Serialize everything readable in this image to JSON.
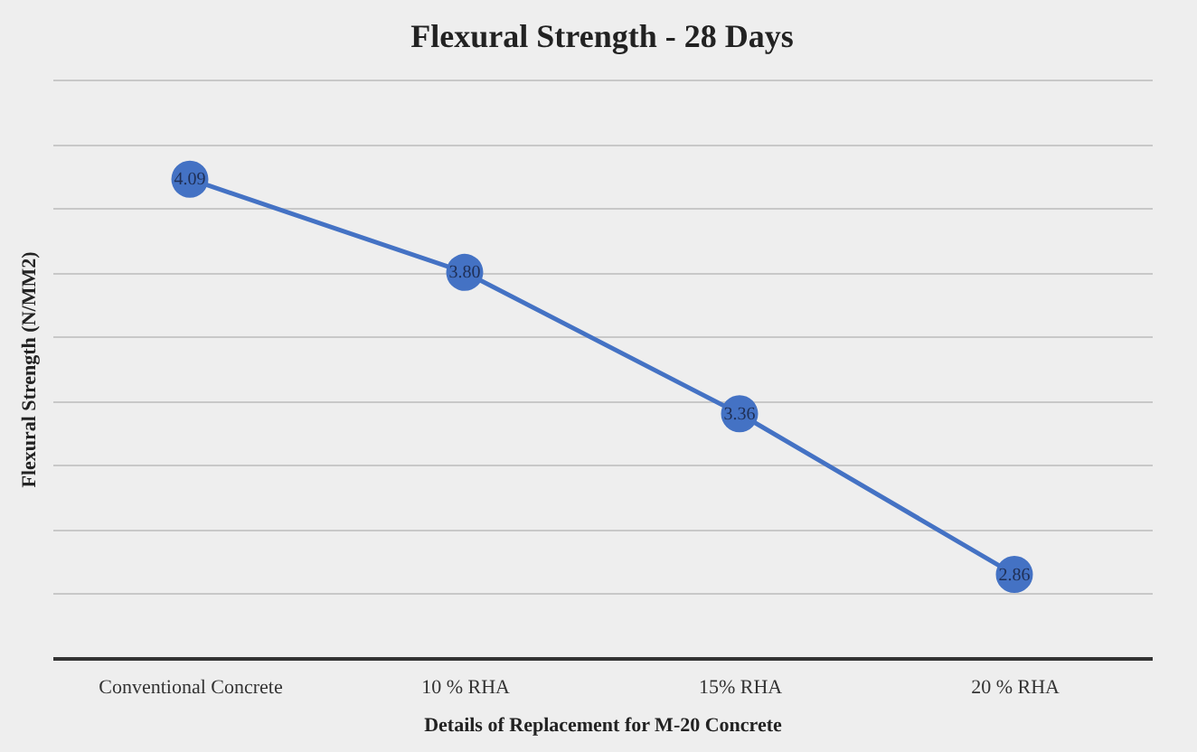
{
  "chart_data": {
    "type": "line",
    "title": "Flexural Strength - 28 Days",
    "xlabel": "Details of Replacement for M-20 Concrete",
    "ylabel": "Flexural Strength (N/MM2)",
    "categories": [
      "Conventional Concrete",
      "10 % RHA",
      "15% RHA",
      "20 % RHA"
    ],
    "series": [
      {
        "color": "#4472c4",
        "values": [
          4.09,
          3.8,
          3.36,
          2.86
        ],
        "value_labels": [
          "4.09",
          "3.80",
          "3.36",
          "2.86"
        ]
      }
    ],
    "grid": "y",
    "tick_labels": "x",
    "marker": "circle",
    "line_style": "solid",
    "legend": false
  }
}
